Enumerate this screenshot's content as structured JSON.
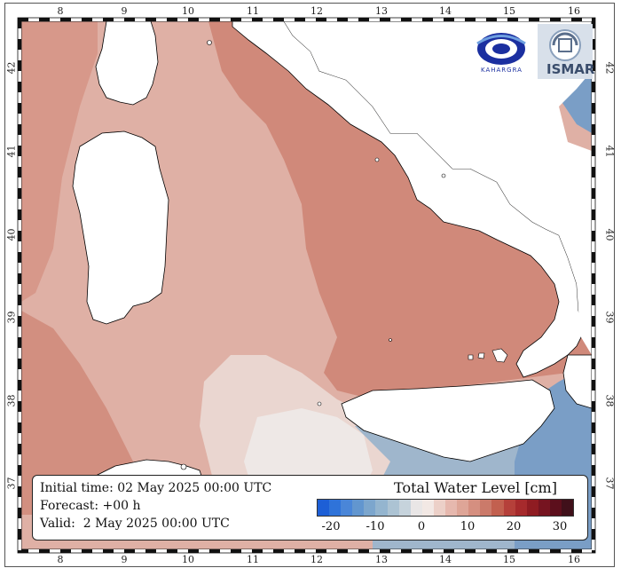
{
  "map": {
    "longitude_ticks": [
      "8",
      "9",
      "10",
      "11",
      "12",
      "13",
      "14",
      "15",
      "16"
    ],
    "latitude_ticks": [
      "42",
      "41",
      "40",
      "39",
      "38",
      "37"
    ],
    "colors": {
      "land": "#ffffff",
      "low_sea": "#7a9fc8",
      "mid_sea": "#e2b0a6",
      "high_sea": "#d08c7c"
    }
  },
  "info": {
    "initial_time": "Initial time: 02 May 2025 00:00 UTC",
    "forecast": "Forecast: +00 h",
    "valid": "Valid:  2 May 2025 00:00 UTC"
  },
  "legend": {
    "title": "Total Water Level [cm]",
    "tick_labels": [
      "-20",
      "-10",
      "0",
      "10",
      "20",
      "30"
    ],
    "colors": [
      "#1d5fd6",
      "#2f73d9",
      "#4a86d8",
      "#6296cf",
      "#7ca6cd",
      "#94b5cf",
      "#acc3d3",
      "#c6d3dc",
      "#e9e6e6",
      "#f2e8e4",
      "#ecd0c8",
      "#e6b8ae",
      "#dea597",
      "#d58f80",
      "#cb7a6a",
      "#c2604f",
      "#b5403a",
      "#a62a2c",
      "#8f1c22",
      "#761420",
      "#5c0f1c",
      "#40101a"
    ]
  },
  "logos": {
    "left_text": "KAHARGRA",
    "right_text": "ISMAR"
  }
}
